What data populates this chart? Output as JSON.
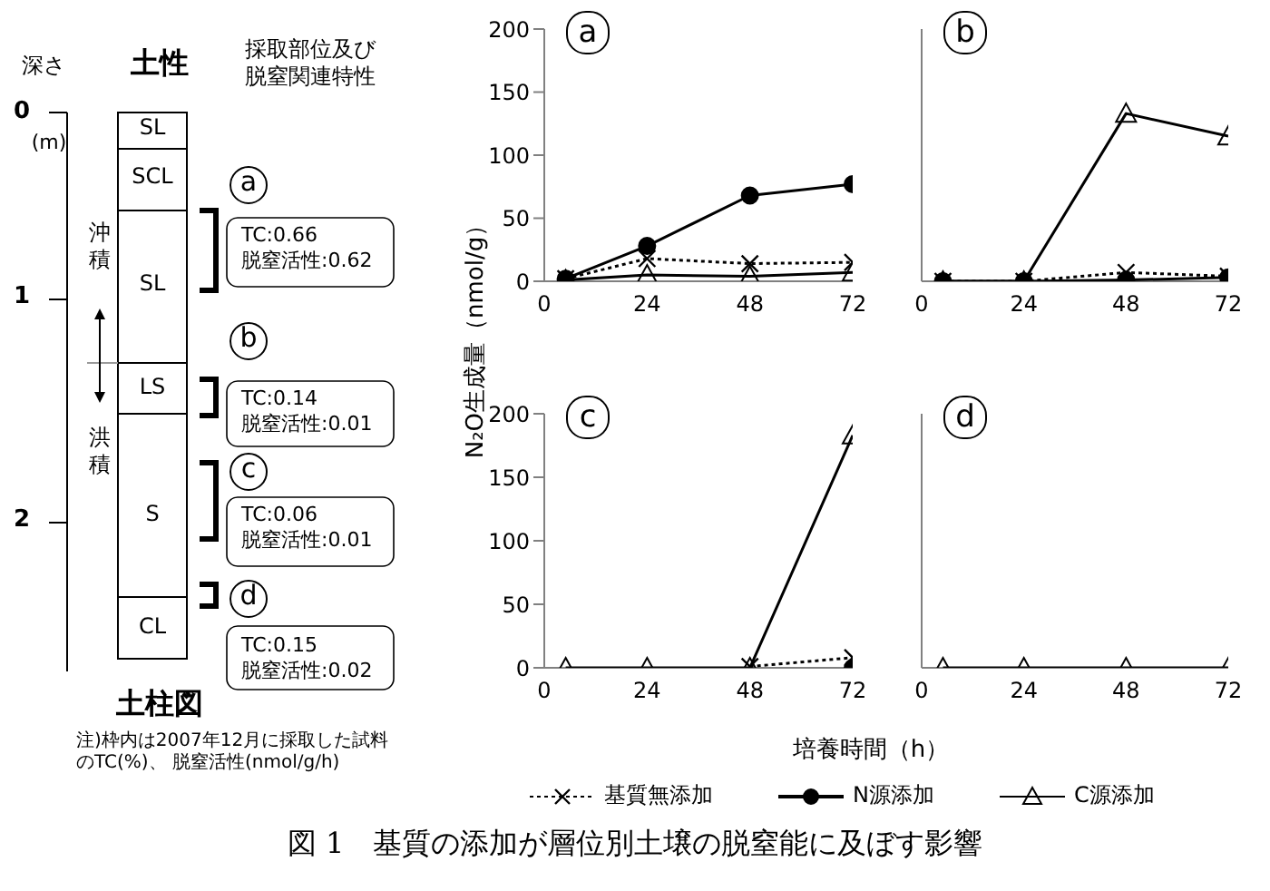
{
  "chart_data": [
    {
      "type": "other",
      "title": "図 1　基質の添加が層位別土壌の脱窒能に及ぼす影響",
      "annotations": [
        "深さ",
        "土性",
        "採取部位及び脱窒関連特性",
        "0",
        "(m)",
        "1",
        "2",
        "SL",
        "SCL",
        "SL",
        "LS",
        "S",
        "CL",
        "沖積",
        "洪積",
        "a",
        "b",
        "c",
        "d",
        "TC:0.66\n脱窒活性:0.62",
        "TC:0.14\n脱窒活性:0.01",
        "TC:0.06\n脱窒活性:0.01",
        "TC:0.15\n脱窒活性:0.02",
        "土柱図",
        "注)枠内は2007年12月に採取した試料のTC(%)、 脱窒活性(nmol/g/h)"
      ]
    },
    {
      "type": "line",
      "annotations": [
        "a"
      ],
      "x": [
        5,
        24,
        48,
        72
      ],
      "xlim": [
        0,
        72
      ],
      "xticks": [
        0,
        24,
        48,
        72
      ],
      "ylim": [
        0,
        200
      ],
      "yticks": [
        0,
        50,
        100,
        150,
        200
      ],
      "series": [
        {
          "color": "#000000",
          "marker": "cross",
          "line_style": "dotted",
          "values": [
            2,
            18,
            14,
            15
          ]
        },
        {
          "color": "#000000",
          "marker": "circle",
          "line_style": "solid",
          "values": [
            2,
            28,
            68,
            77
          ]
        },
        {
          "color": "#000000",
          "marker": "triangle",
          "line_style": "solid",
          "values": [
            1,
            5,
            4,
            7
          ]
        }
      ]
    },
    {
      "type": "line",
      "annotations": [
        "b"
      ],
      "x": [
        5,
        24,
        48,
        72
      ],
      "xlim": [
        0,
        72
      ],
      "xticks": [
        0,
        24,
        48,
        72
      ],
      "ylim": [
        0,
        200
      ],
      "yticks": [
        0,
        50,
        100,
        150,
        200
      ],
      "tick_labels": "x",
      "series": [
        {
          "color": "#000000",
          "marker": "cross",
          "line_style": "dotted",
          "values": [
            0,
            0,
            7,
            4
          ]
        },
        {
          "color": "#000000",
          "marker": "circle",
          "line_style": "solid",
          "values": [
            0,
            0,
            1,
            3
          ]
        },
        {
          "color": "#000000",
          "marker": "triangle",
          "line_style": "solid",
          "values": [
            0,
            0,
            133,
            115
          ]
        }
      ]
    },
    {
      "type": "line",
      "annotations": [
        "c"
      ],
      "xlabel": "培養時間（h）",
      "ylabel": "N₂O生成量（nmol/g）",
      "x": [
        5,
        24,
        48,
        72
      ],
      "xlim": [
        0,
        72
      ],
      "xticks": [
        0,
        24,
        48,
        72
      ],
      "ylim": [
        0,
        200
      ],
      "yticks": [
        0,
        50,
        100,
        150,
        200
      ],
      "series": [
        {
          "color": "#000000",
          "marker": "cross",
          "line_style": "dotted",
          "values": [
            null,
            null,
            1,
            8
          ]
        },
        {
          "color": "#000000",
          "marker": "circle",
          "line_style": "solid",
          "values": [
            null,
            null,
            null,
            0
          ]
        },
        {
          "color": "#000000",
          "marker": "triangle",
          "line_style": "solid",
          "values": [
            0,
            0,
            0,
            183
          ]
        }
      ]
    },
    {
      "type": "line",
      "annotations": [
        "d"
      ],
      "legend": "bottom",
      "x": [
        5,
        24,
        48,
        72
      ],
      "xlim": [
        0,
        72
      ],
      "xticks": [
        0,
        24,
        48,
        72
      ],
      "ylim": [
        0,
        200
      ],
      "yticks": [
        0,
        50,
        100,
        150,
        200
      ],
      "tick_labels": "x",
      "series": [
        {
          "name": "基質無添加",
          "color": "#000000",
          "marker": "cross",
          "line_style": "dotted",
          "values": [
            null,
            null,
            null,
            null
          ]
        },
        {
          "name": "N源添加",
          "color": "#000000",
          "marker": "circle",
          "line_style": "solid",
          "values": [
            null,
            null,
            null,
            null
          ]
        },
        {
          "name": "C源添加",
          "color": "#000000",
          "marker": "triangle",
          "line_style": "solid",
          "values": [
            0,
            0,
            0,
            0
          ]
        }
      ]
    }
  ]
}
